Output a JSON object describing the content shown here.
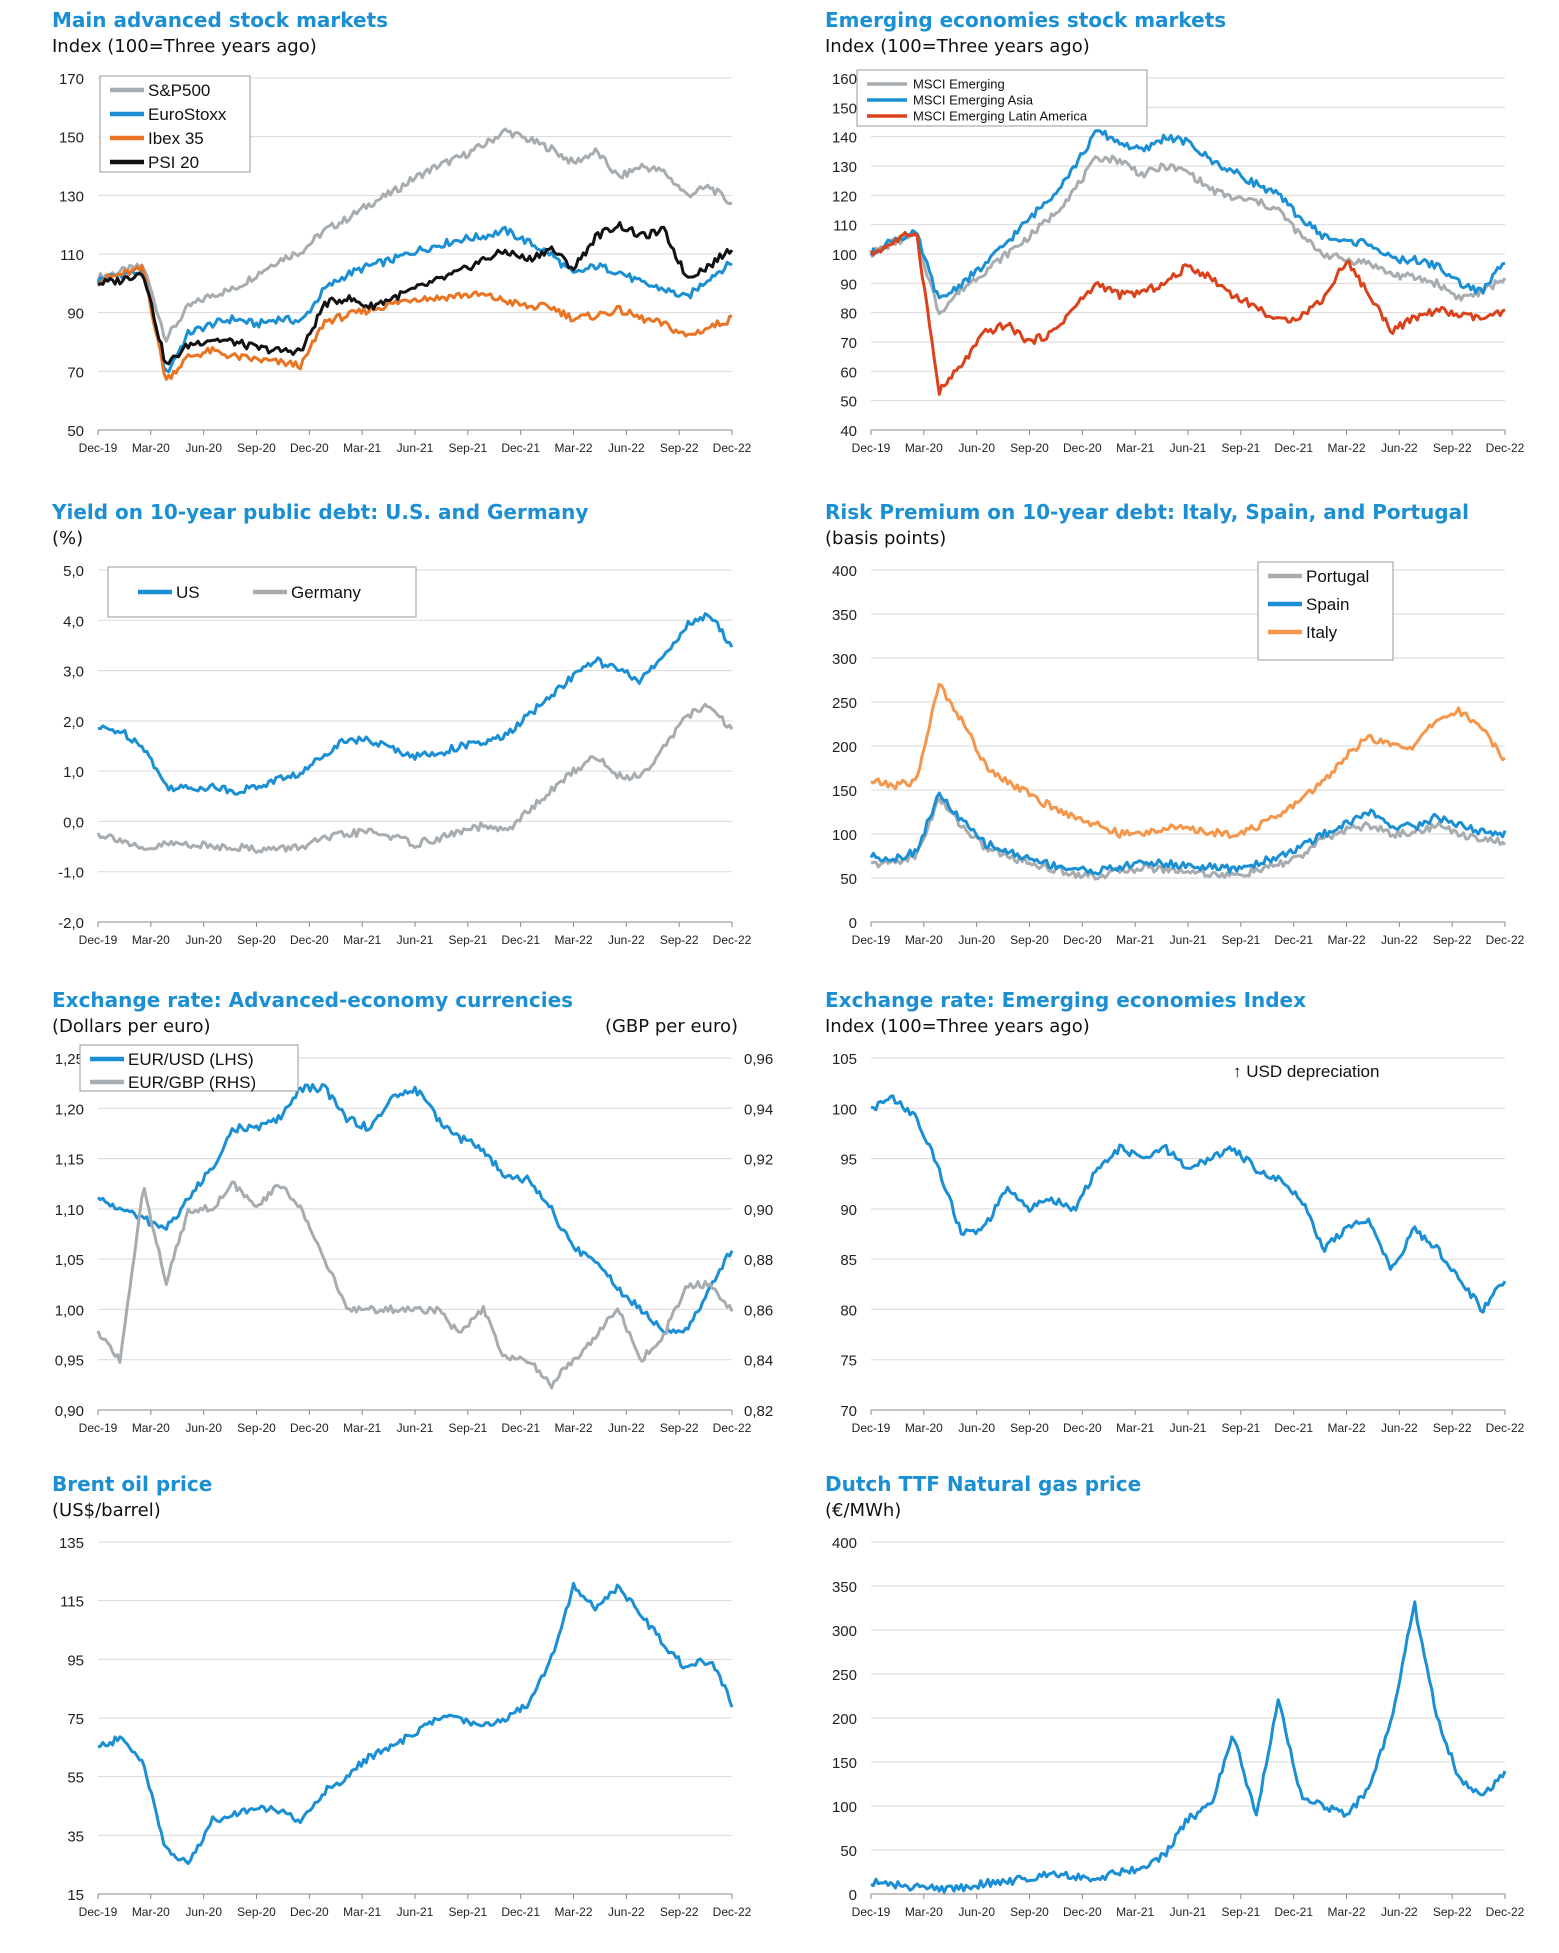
{
  "colors": {
    "title": "#1b8fd4",
    "grid": "#d9d9d9",
    "gray": "#a6acb0",
    "blue": "#1b8fd4",
    "orange": "#e97524",
    "black": "#111111",
    "red": "#d9421b",
    "orange_light": "#f5964a"
  },
  "chart_data": [
    {
      "id": "adv",
      "type": "line",
      "title": "Main advanced stock markets",
      "subtitle": "Index (100=Three years ago)",
      "ylim": [
        50,
        170
      ],
      "yticks": [
        "170",
        "150",
        "130",
        "110",
        "90",
        "70",
        "50"
      ],
      "xticks": [
        "Dec-19",
        "Mar-20",
        "Jun-20",
        "Sep-20",
        "Dec-20",
        "Mar-21",
        "Jun-21",
        "Sep-21",
        "Dec-21",
        "Mar-22",
        "Jun-22",
        "Sep-22",
        "Dec-22"
      ],
      "legend_position": "top-left",
      "grid": true,
      "series": [
        {
          "name": "S&P500",
          "color": "gray",
          "values": [
            102,
            104,
            106,
            81,
            92,
            96,
            98,
            103,
            108,
            111,
            118,
            122,
            127,
            131,
            136,
            140,
            143,
            147,
            152,
            149,
            146,
            141,
            145,
            136,
            140,
            138,
            130,
            133,
            127
          ]
        },
        {
          "name": "EuroStoxx",
          "color": "blue",
          "values": [
            101,
            103,
            104,
            69,
            83,
            86,
            88,
            86,
            88,
            87,
            98,
            103,
            106,
            108,
            111,
            113,
            115,
            116,
            118,
            114,
            110,
            103,
            106,
            104,
            100,
            98,
            95,
            102,
            107
          ]
        },
        {
          "name": "Ibex 35",
          "color": "orange",
          "values": [
            101,
            103,
            105,
            67,
            75,
            77,
            75,
            74,
            73,
            72,
            87,
            89,
            91,
            93,
            95,
            95,
            96,
            96,
            94,
            92,
            92,
            88,
            89,
            91,
            88,
            86,
            82,
            85,
            88
          ]
        },
        {
          "name": "PSI 20",
          "color": "black",
          "values": [
            100,
            101,
            104,
            72,
            79,
            81,
            80,
            78,
            77,
            77,
            93,
            95,
            92,
            95,
            98,
            101,
            104,
            108,
            111,
            108,
            112,
            105,
            116,
            120,
            116,
            118,
            102,
            106,
            112
          ]
        }
      ]
    },
    {
      "id": "emg",
      "type": "line",
      "title": "Emerging economies stock markets",
      "subtitle": "Index (100=Three years ago)",
      "ylim": [
        40,
        160
      ],
      "yticks": [
        "160",
        "150",
        "140",
        "130",
        "120",
        "110",
        "100",
        "90",
        "80",
        "70",
        "60",
        "50",
        "40"
      ],
      "xticks": [
        "Dec-19",
        "Mar-20",
        "Jun-20",
        "Sep-20",
        "Dec-20",
        "Mar-21",
        "Jun-21",
        "Sep-21",
        "Dec-21",
        "Mar-22",
        "Jun-22",
        "Sep-22",
        "Dec-22"
      ],
      "legend_position": "top-left",
      "grid": true,
      "series": [
        {
          "name": "MSCI Emerging",
          "color": "gray",
          "values": [
            100,
            104,
            106,
            80,
            88,
            94,
            100,
            106,
            113,
            122,
            133,
            132,
            127,
            130,
            128,
            122,
            119,
            118,
            115,
            106,
            100,
            98,
            97,
            93,
            92,
            90,
            85,
            87,
            92
          ]
        },
        {
          "name": "MSCI Emerging Asia",
          "color": "blue",
          "values": [
            100,
            105,
            107,
            84,
            90,
            96,
            104,
            112,
            120,
            130,
            142,
            138,
            135,
            140,
            138,
            132,
            128,
            124,
            120,
            112,
            106,
            104,
            104,
            98,
            98,
            96,
            90,
            87,
            98
          ]
        },
        {
          "name": "MSCI Emerging Latin America",
          "color": "red",
          "values": [
            100,
            104,
            108,
            53,
            62,
            73,
            76,
            70,
            73,
            82,
            90,
            86,
            87,
            90,
            96,
            92,
            86,
            82,
            77,
            79,
            85,
            98,
            86,
            74,
            78,
            81,
            79,
            78,
            80
          ]
        }
      ]
    },
    {
      "id": "yield",
      "type": "line",
      "title": "Yield on 10-year public debt: U.S. and Germany",
      "subtitle": "(%)",
      "ylim": [
        -2.0,
        5.0
      ],
      "yticks": [
        "5,0",
        "4,0",
        "3,0",
        "2,0",
        "1,0",
        "0,0",
        "-1,0",
        "-2,0"
      ],
      "xticks": [
        "Dec-19",
        "Mar-20",
        "Jun-20",
        "Sep-20",
        "Dec-20",
        "Mar-21",
        "Jun-21",
        "Sep-21",
        "Dec-21",
        "Mar-22",
        "Jun-22",
        "Sep-22",
        "Dec-22"
      ],
      "legend_position": "top-left",
      "grid": true,
      "series": [
        {
          "name": "US",
          "color": "blue",
          "values": [
            1.85,
            1.8,
            1.5,
            0.7,
            0.65,
            0.7,
            0.6,
            0.68,
            0.85,
            0.95,
            1.35,
            1.65,
            1.6,
            1.45,
            1.3,
            1.35,
            1.5,
            1.55,
            1.7,
            2.1,
            2.5,
            2.9,
            3.2,
            3.0,
            2.8,
            3.3,
            3.9,
            4.1,
            3.5
          ]
        },
        {
          "name": "Germany",
          "color": "gray",
          "values": [
            -0.25,
            -0.35,
            -0.6,
            -0.45,
            -0.45,
            -0.5,
            -0.5,
            -0.55,
            -0.55,
            -0.5,
            -0.35,
            -0.25,
            -0.2,
            -0.3,
            -0.45,
            -0.35,
            -0.2,
            -0.1,
            -0.2,
            0.2,
            0.6,
            1.0,
            1.3,
            0.9,
            0.9,
            1.5,
            2.1,
            2.3,
            1.8
          ]
        }
      ]
    },
    {
      "id": "risk",
      "type": "line",
      "title": "Risk Premium on 10-year debt: Italy, Spain, and Portugal",
      "subtitle": "(basis points)",
      "ylim": [
        0,
        400
      ],
      "yticks": [
        "400",
        "350",
        "300",
        "250",
        "200",
        "150",
        "100",
        "50",
        "0"
      ],
      "xticks": [
        "Dec-19",
        "Mar-20",
        "Jun-20",
        "Sep-20",
        "Dec-20",
        "Mar-21",
        "Jun-21",
        "Sep-21",
        "Dec-21",
        "Mar-22",
        "Jun-22",
        "Sep-22",
        "Dec-22"
      ],
      "legend_position": "top-right",
      "grid": true,
      "series": [
        {
          "name": "Portugal",
          "color": "gray",
          "values": [
            65,
            68,
            75,
            140,
            110,
            85,
            75,
            68,
            60,
            55,
            52,
            58,
            62,
            60,
            58,
            55,
            52,
            58,
            65,
            75,
            95,
            105,
            110,
            100,
            102,
            110,
            100,
            95,
            90
          ]
        },
        {
          "name": "Spain",
          "color": "blue",
          "values": [
            75,
            72,
            80,
            145,
            115,
            90,
            80,
            72,
            65,
            60,
            58,
            62,
            68,
            66,
            64,
            62,
            60,
            66,
            75,
            85,
            100,
            112,
            125,
            110,
            108,
            120,
            110,
            102,
            100
          ]
        },
        {
          "name": "Italy",
          "color": "orange_light",
          "values": [
            160,
            155,
            160,
            270,
            230,
            180,
            160,
            145,
            130,
            120,
            110,
            100,
            100,
            108,
            105,
            102,
            100,
            108,
            120,
            140,
            160,
            190,
            210,
            200,
            200,
            230,
            240,
            220,
            185
          ]
        }
      ]
    },
    {
      "id": "fxadv",
      "type": "line",
      "title": "Exchange rate: Advanced-economy currencies",
      "subtitle": "(Dollars per euro)",
      "subtitle_right": "(GBP per euro)",
      "ylim": [
        0.9,
        1.25
      ],
      "ylim_right": [
        0.82,
        0.96
      ],
      "yticks": [
        "1,25",
        "1,20",
        "1,15",
        "1,10",
        "1,05",
        "1,00",
        "0,95",
        "0,90"
      ],
      "yticks_right": [
        "0,96",
        "0,94",
        "0,92",
        "0,90",
        "0,88",
        "0,86",
        "0,84",
        "0,82"
      ],
      "xticks": [
        "Dec-19",
        "Mar-20",
        "Jun-20",
        "Sep-20",
        "Dec-20",
        "Mar-21",
        "Jun-21",
        "Sep-21",
        "Dec-21",
        "Mar-22",
        "Jun-22",
        "Sep-22",
        "Dec-22"
      ],
      "legend_position": "top-left",
      "grid": true,
      "series": [
        {
          "name": "EUR/USD (LHS)",
          "color": "blue",
          "axis": "left",
          "values": [
            1.11,
            1.1,
            1.09,
            1.08,
            1.11,
            1.14,
            1.18,
            1.18,
            1.19,
            1.22,
            1.22,
            1.19,
            1.18,
            1.21,
            1.22,
            1.19,
            1.17,
            1.16,
            1.13,
            1.13,
            1.1,
            1.06,
            1.05,
            1.02,
            1.0,
            0.98,
            0.98,
            1.02,
            1.06
          ]
        },
        {
          "name": "EUR/GBP (RHS)",
          "color": "gray",
          "axis": "right",
          "values": [
            0.85,
            0.84,
            0.91,
            0.87,
            0.9,
            0.9,
            0.91,
            0.9,
            0.91,
            0.9,
            0.88,
            0.86,
            0.86,
            0.86,
            0.86,
            0.86,
            0.85,
            0.86,
            0.84,
            0.84,
            0.83,
            0.84,
            0.85,
            0.86,
            0.84,
            0.85,
            0.87,
            0.87,
            0.86
          ]
        }
      ]
    },
    {
      "id": "fxemg",
      "type": "line",
      "title": "Exchange rate: Emerging economies Index",
      "subtitle": "Index (100=Three years ago)",
      "annotation": "↑ USD depreciation",
      "ylim": [
        70,
        105
      ],
      "yticks": [
        "105",
        "100",
        "95",
        "90",
        "85",
        "80",
        "75",
        "70"
      ],
      "xticks": [
        "Dec-19",
        "Mar-20",
        "Jun-20",
        "Sep-20",
        "Dec-20",
        "Mar-21",
        "Jun-21",
        "Sep-21",
        "Dec-21",
        "Mar-22",
        "Jun-22",
        "Sep-22",
        "Dec-22"
      ],
      "grid": true,
      "series": [
        {
          "name": "",
          "color": "blue",
          "values": [
            100,
            101,
            99,
            94,
            87.5,
            88,
            92,
            90,
            91,
            90,
            94,
            96,
            95,
            96,
            94,
            95,
            96,
            94,
            93,
            91,
            86,
            88,
            89,
            84,
            88,
            86,
            83,
            80,
            83
          ]
        }
      ]
    },
    {
      "id": "brent",
      "type": "line",
      "title": "Brent oil price",
      "subtitle": "(US$/barrel)",
      "ylim": [
        15,
        135
      ],
      "yticks": [
        "135",
        "115",
        "95",
        "75",
        "55",
        "35",
        "15"
      ],
      "xticks": [
        "Dec-19",
        "Mar-20",
        "Jun-20",
        "Sep-20",
        "Dec-20",
        "Mar-21",
        "Jun-21",
        "Sep-21",
        "Dec-21",
        "Mar-22",
        "Jun-22",
        "Sep-22",
        "Dec-22"
      ],
      "grid": true,
      "series": [
        {
          "name": "",
          "color": "blue",
          "values": [
            65,
            68,
            60,
            30,
            25,
            40,
            42,
            45,
            43,
            40,
            50,
            55,
            62,
            65,
            70,
            75,
            75,
            72,
            75,
            80,
            95,
            120,
            112,
            120,
            110,
            100,
            92,
            95,
            80
          ]
        }
      ]
    },
    {
      "id": "gas",
      "type": "line",
      "title": "Dutch TTF Natural gas price",
      "subtitle": "(€/MWh)",
      "ylim": [
        0,
        400
      ],
      "yticks": [
        "400",
        "350",
        "300",
        "250",
        "200",
        "150",
        "100",
        "50",
        "0"
      ],
      "xticks": [
        "Dec-19",
        "Mar-20",
        "Jun-20",
        "Sep-20",
        "Dec-20",
        "Mar-21",
        "Jun-21",
        "Sep-21",
        "Dec-21",
        "Mar-22",
        "Jun-22",
        "Sep-22",
        "Dec-22"
      ],
      "grid": true,
      "series": [
        {
          "name": "",
          "color": "blue",
          "values": [
            14,
            10,
            8,
            6,
            7,
            12,
            14,
            18,
            25,
            20,
            18,
            25,
            30,
            45,
            85,
            100,
            180,
            90,
            220,
            110,
            100,
            90,
            120,
            200,
            330,
            200,
            130,
            110,
            140
          ]
        }
      ]
    }
  ]
}
